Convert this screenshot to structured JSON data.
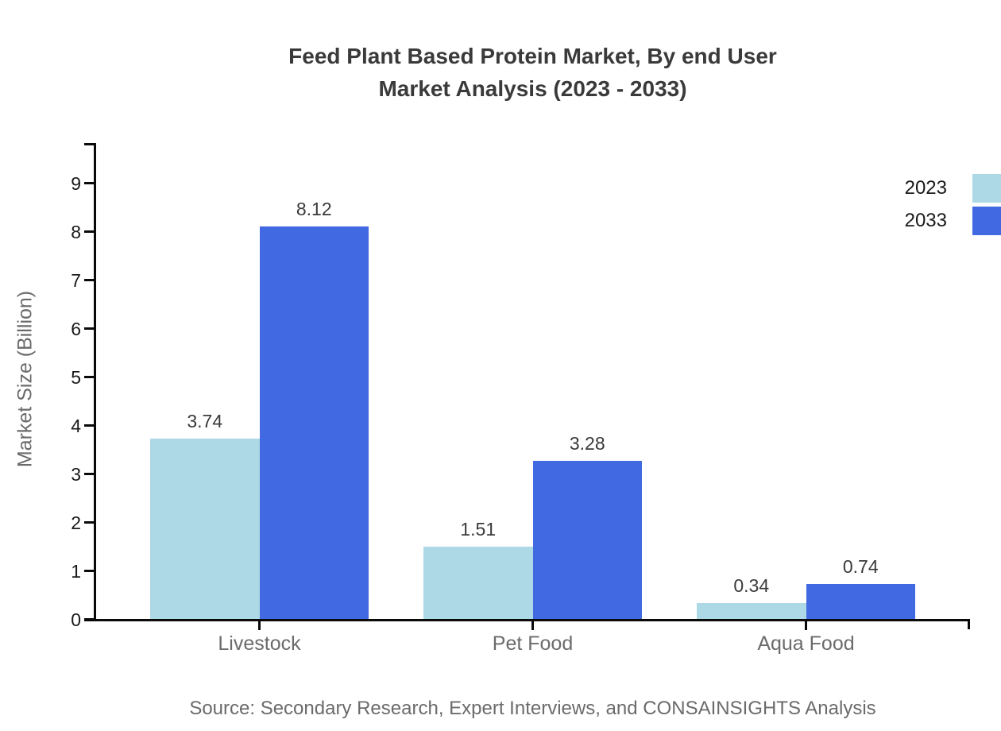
{
  "chart_data": {
    "type": "bar",
    "title_line1": "Feed Plant Based Protein Market, By end User",
    "title_line2": "Market Analysis (2023 - 2033)",
    "ylabel": "Market Size (Billion)",
    "xlabel": "",
    "categories": [
      "Livestock",
      "Pet Food",
      "Aqua Food"
    ],
    "series": [
      {
        "name": "2023",
        "color": "#add8e6",
        "values": [
          3.74,
          1.51,
          0.34
        ]
      },
      {
        "name": "2033",
        "color": "#4169e1",
        "values": [
          8.12,
          3.28,
          0.74
        ]
      }
    ],
    "ylim": [
      0,
      9
    ],
    "ytick_step": 1,
    "grid": false,
    "legend_position": "top-right",
    "value_label_decimals": 2,
    "axis_color": "#0a0a0a",
    "source": "Source: Secondary Research, Expert Interviews, and CONSAINSIGHTS Analysis"
  }
}
